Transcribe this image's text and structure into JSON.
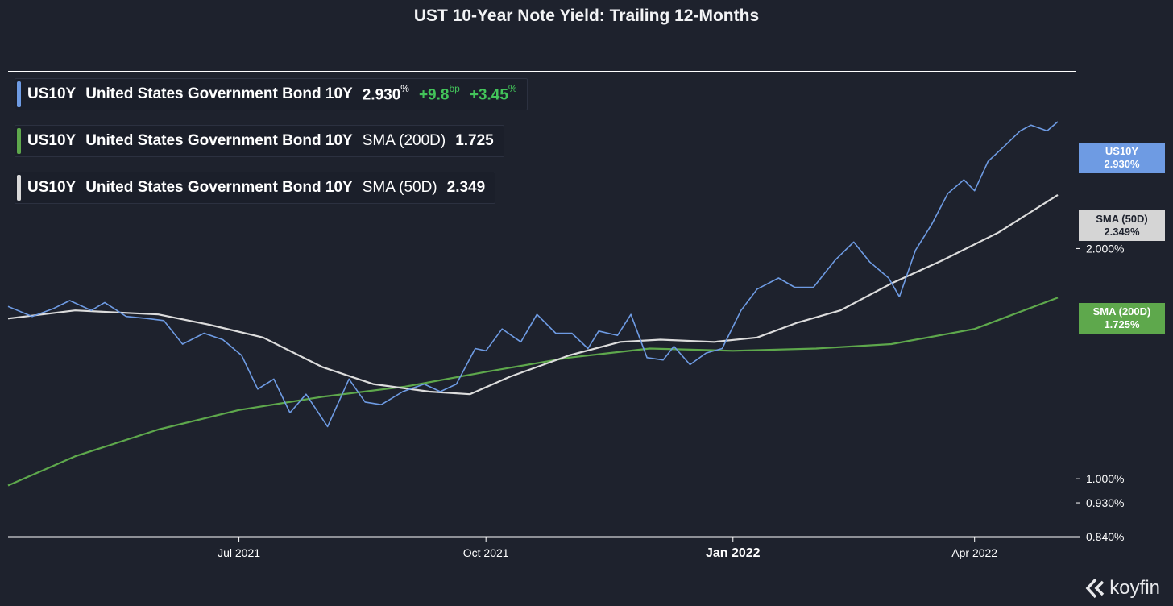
{
  "title": "UST 10-Year Note Yield: Trailing 12-Months",
  "legend": [
    {
      "ticker": "US10Y",
      "name": "United States Government Bond 10Y",
      "value": "2.930",
      "value_unit": "%",
      "change_bp": "+9.8",
      "change_bp_unit": "bp",
      "change_pct": "+3.45",
      "change_pct_unit": "%",
      "color": "#6e9be3"
    },
    {
      "ticker": "US10Y",
      "name": "United States Government Bond 10Y",
      "indicator": "SMA (200D)",
      "value": "1.725",
      "color": "#5ea84c"
    },
    {
      "ticker": "US10Y",
      "name": "United States Government Bond 10Y",
      "indicator": "SMA (50D)",
      "value": "2.349",
      "color": "#d9d9d9"
    }
  ],
  "price_tags": [
    {
      "line1": "US10Y",
      "line2": "2.930%",
      "bg": "#6e9be3",
      "fg": "#ffffff"
    },
    {
      "line1": "SMA (50D)",
      "line2": "2.349%",
      "bg": "#d5d5d5",
      "fg": "#1e222d"
    },
    {
      "line1": "SMA (200D)",
      "line2": "1.725%",
      "bg": "#5ea84c",
      "fg": "#ffffff"
    }
  ],
  "brand": "koyfin",
  "chart_data": {
    "type": "line",
    "x_axis": {
      "min": "2021-04-06",
      "max": "2022-05-02",
      "ticks": [
        {
          "date": "2021-07-01",
          "label": "Jul 2021"
        },
        {
          "date": "2021-10-01",
          "label": "Oct 2021"
        },
        {
          "date": "2022-01-01",
          "label": "Jan 2022"
        },
        {
          "date": "2022-04-01",
          "label": "Apr 2022"
        }
      ]
    },
    "y_axis": {
      "scale": "log",
      "min": 0.84,
      "max": 3.3,
      "ticks": [
        {
          "value": 2.0,
          "label": "2.000%"
        },
        {
          "value": 1.0,
          "label": "1.000%"
        },
        {
          "value": 0.93,
          "label": "0.930%"
        },
        {
          "value": 0.84,
          "label": "0.840%"
        }
      ]
    },
    "series": [
      {
        "name": "US10Y",
        "color": "#6e9be3",
        "width": 1.6,
        "points": [
          [
            "2021-04-06",
            1.68
          ],
          [
            "2021-04-15",
            1.63
          ],
          [
            "2021-04-23",
            1.67
          ],
          [
            "2021-04-29",
            1.71
          ],
          [
            "2021-05-07",
            1.66
          ],
          [
            "2021-05-12",
            1.7
          ],
          [
            "2021-05-20",
            1.63
          ],
          [
            "2021-05-28",
            1.62
          ],
          [
            "2021-06-03",
            1.61
          ],
          [
            "2021-06-10",
            1.5
          ],
          [
            "2021-06-18",
            1.55
          ],
          [
            "2021-06-25",
            1.52
          ],
          [
            "2021-07-02",
            1.45
          ],
          [
            "2021-07-08",
            1.31
          ],
          [
            "2021-07-14",
            1.35
          ],
          [
            "2021-07-20",
            1.22
          ],
          [
            "2021-07-26",
            1.29
          ],
          [
            "2021-08-03",
            1.17
          ],
          [
            "2021-08-11",
            1.35
          ],
          [
            "2021-08-17",
            1.26
          ],
          [
            "2021-08-23",
            1.25
          ],
          [
            "2021-08-31",
            1.3
          ],
          [
            "2021-09-08",
            1.33
          ],
          [
            "2021-09-14",
            1.3
          ],
          [
            "2021-09-20",
            1.33
          ],
          [
            "2021-09-27",
            1.48
          ],
          [
            "2021-10-01",
            1.47
          ],
          [
            "2021-10-07",
            1.57
          ],
          [
            "2021-10-14",
            1.51
          ],
          [
            "2021-10-20",
            1.64
          ],
          [
            "2021-10-27",
            1.55
          ],
          [
            "2021-11-02",
            1.55
          ],
          [
            "2021-11-08",
            1.48
          ],
          [
            "2021-11-12",
            1.56
          ],
          [
            "2021-11-19",
            1.54
          ],
          [
            "2021-11-24",
            1.64
          ],
          [
            "2021-11-30",
            1.44
          ],
          [
            "2021-12-06",
            1.43
          ],
          [
            "2021-12-10",
            1.49
          ],
          [
            "2021-12-16",
            1.41
          ],
          [
            "2021-12-22",
            1.46
          ],
          [
            "2021-12-28",
            1.48
          ],
          [
            "2022-01-04",
            1.66
          ],
          [
            "2022-01-10",
            1.77
          ],
          [
            "2022-01-18",
            1.83
          ],
          [
            "2022-01-24",
            1.78
          ],
          [
            "2022-01-31",
            1.78
          ],
          [
            "2022-02-08",
            1.93
          ],
          [
            "2022-02-15",
            2.04
          ],
          [
            "2022-02-21",
            1.92
          ],
          [
            "2022-02-28",
            1.83
          ],
          [
            "2022-03-04",
            1.73
          ],
          [
            "2022-03-10",
            1.99
          ],
          [
            "2022-03-16",
            2.15
          ],
          [
            "2022-03-22",
            2.36
          ],
          [
            "2022-03-28",
            2.46
          ],
          [
            "2022-04-01",
            2.38
          ],
          [
            "2022-04-06",
            2.6
          ],
          [
            "2022-04-12",
            2.72
          ],
          [
            "2022-04-18",
            2.85
          ],
          [
            "2022-04-22",
            2.9
          ],
          [
            "2022-04-28",
            2.85
          ],
          [
            "2022-05-02",
            2.93
          ]
        ]
      },
      {
        "name": "SMA (50D)",
        "color": "#dcdcdc",
        "width": 2.2,
        "points": [
          [
            "2021-04-06",
            1.62
          ],
          [
            "2021-05-01",
            1.66
          ],
          [
            "2021-06-01",
            1.64
          ],
          [
            "2021-06-20",
            1.59
          ],
          [
            "2021-07-10",
            1.53
          ],
          [
            "2021-08-01",
            1.4
          ],
          [
            "2021-08-20",
            1.33
          ],
          [
            "2021-09-10",
            1.3
          ],
          [
            "2021-09-25",
            1.29
          ],
          [
            "2021-10-10",
            1.36
          ],
          [
            "2021-11-01",
            1.45
          ],
          [
            "2021-11-20",
            1.51
          ],
          [
            "2021-12-05",
            1.52
          ],
          [
            "2021-12-25",
            1.51
          ],
          [
            "2022-01-10",
            1.53
          ],
          [
            "2022-01-25",
            1.6
          ],
          [
            "2022-02-10",
            1.66
          ],
          [
            "2022-03-01",
            1.8
          ],
          [
            "2022-03-20",
            1.93
          ],
          [
            "2022-04-10",
            2.1
          ],
          [
            "2022-05-02",
            2.35
          ]
        ]
      },
      {
        "name": "SMA (200D)",
        "color": "#5ea84c",
        "width": 2.2,
        "points": [
          [
            "2021-04-06",
            0.98
          ],
          [
            "2021-05-01",
            1.07
          ],
          [
            "2021-06-01",
            1.16
          ],
          [
            "2021-07-01",
            1.23
          ],
          [
            "2021-08-01",
            1.28
          ],
          [
            "2021-09-01",
            1.32
          ],
          [
            "2021-10-01",
            1.38
          ],
          [
            "2021-11-01",
            1.44
          ],
          [
            "2021-12-01",
            1.48
          ],
          [
            "2022-01-01",
            1.47
          ],
          [
            "2022-02-01",
            1.48
          ],
          [
            "2022-03-01",
            1.5
          ],
          [
            "2022-04-01",
            1.57
          ],
          [
            "2022-05-02",
            1.725
          ]
        ]
      }
    ]
  }
}
